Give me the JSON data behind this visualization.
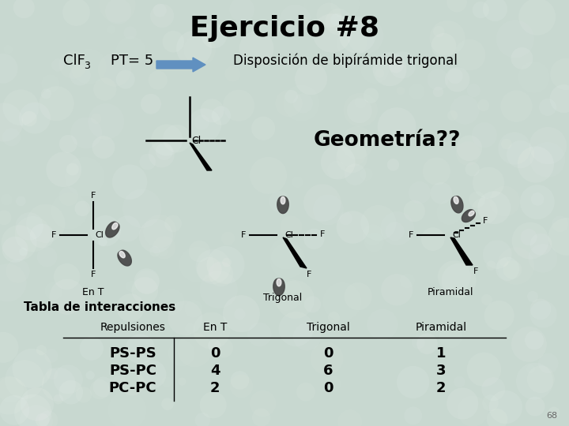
{
  "title": "Ejercicio #8",
  "title_fontsize": 26,
  "title_fontweight": "bold",
  "background_color": "#c8d8d0",
  "text_color": "#000000",
  "clf3_text": "ClF",
  "subscript3": "3",
  "pt_text": "PT= 5",
  "disposition_text": "Disposición de bipírámide trigonal",
  "geometria_text": "Geometría??",
  "labels_bottom": [
    "En T",
    "Trigonal",
    "Piramidal"
  ],
  "tabla_title": "Tabla de interacciones",
  "col_headers": [
    "Repulsiones",
    "En T",
    "Trigonal",
    "Piramidal"
  ],
  "rows": [
    [
      "PS-PS",
      "0",
      "0",
      "1"
    ],
    [
      "PS-PC",
      "4",
      "6",
      "3"
    ],
    [
      "PC-PC",
      "2",
      "0",
      "2"
    ]
  ],
  "page_number": "68",
  "arrow_color": "#6090c0"
}
